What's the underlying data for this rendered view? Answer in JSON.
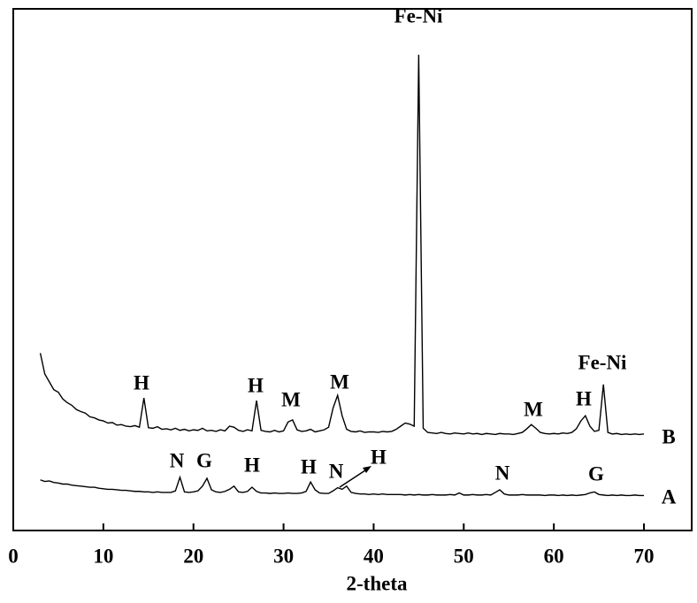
{
  "chart_data": {
    "type": "line",
    "x_label": "2-theta",
    "x": [
      3,
      3.5,
      4,
      4.5,
      5,
      5.5,
      6,
      6.5,
      7,
      7.5,
      8,
      8.5,
      9,
      9.5,
      10,
      10.5,
      11,
      11.5,
      12,
      12.5,
      13,
      13.5,
      14,
      14.5,
      15,
      15.5,
      16,
      16.5,
      17,
      17.5,
      18,
      18.5,
      19,
      19.5,
      20,
      20.5,
      21,
      21.5,
      22,
      22.5,
      23,
      23.5,
      24,
      24.5,
      25,
      25.5,
      26,
      26.5,
      27,
      27.5,
      28,
      28.5,
      29,
      29.5,
      30,
      30.5,
      31,
      31.5,
      32,
      32.5,
      33,
      33.5,
      34,
      34.5,
      35,
      35.5,
      36,
      36.5,
      37,
      37.5,
      38,
      38.5,
      39,
      39.5,
      40,
      40.5,
      41,
      41.5,
      42,
      42.5,
      43,
      43.5,
      44,
      44.5,
      45,
      45.5,
      46,
      46.5,
      47,
      47.5,
      48,
      48.5,
      49,
      49.5,
      50,
      50.5,
      51,
      51.5,
      52,
      52.5,
      53,
      53.5,
      54,
      54.5,
      55,
      55.5,
      56,
      56.5,
      57,
      57.5,
      58,
      58.5,
      59,
      59.5,
      60,
      60.5,
      61,
      61.5,
      62,
      62.5,
      63,
      63.5,
      64,
      64.5,
      65,
      65.5,
      66,
      66.5,
      67,
      67.5,
      68,
      68.5,
      69,
      69.5,
      70
    ],
    "series": [
      {
        "name": "B",
        "color": "#000000",
        "values": [
          34,
          30,
          28.5,
          27,
          26.5,
          25.2,
          24.5,
          24,
          23.2,
          22.8,
          22.5,
          21.8,
          21.6,
          21.2,
          21,
          20.6,
          20.7,
          20.2,
          20.3,
          20,
          19.9,
          20.1,
          19.8,
          25.4,
          19.7,
          19.6,
          19.9,
          19.4,
          19.5,
          19.3,
          19.6,
          19.2,
          19.4,
          19.1,
          19.3,
          19.2,
          19.6,
          19.1,
          19.2,
          19,
          19.3,
          19.1,
          20,
          19.8,
          19.2,
          19,
          19.3,
          19.1,
          24.9,
          19.2,
          19,
          18.9,
          19.2,
          18.9,
          19.1,
          20.8,
          21.2,
          19.3,
          19,
          19.1,
          19.4,
          18.9,
          19.1,
          19.3,
          19.8,
          23.5,
          25.9,
          22,
          19.4,
          19,
          18.9,
          19.1,
          18.8,
          18.9,
          18.9,
          18.8,
          19,
          18.9,
          19,
          19.4,
          20,
          20.6,
          20.4,
          20,
          91.2,
          19.6,
          18.8,
          18.7,
          18.6,
          18.8,
          18.6,
          18.5,
          18.7,
          18.6,
          18.5,
          18.7,
          18.5,
          18.6,
          18.4,
          18.6,
          18.5,
          18.4,
          18.6,
          18.5,
          18.5,
          18.4,
          18.6,
          18.8,
          19.5,
          20.3,
          19.6,
          18.8,
          18.6,
          18.5,
          18.6,
          18.5,
          18.7,
          18.6,
          18.8,
          19.5,
          21,
          22,
          20,
          19,
          19.2,
          28,
          18.8,
          18.5,
          18.6,
          18.4,
          18.5,
          18.4,
          18.5,
          18.4,
          18.5
        ]
      },
      {
        "name": "A",
        "color": "#000000",
        "values": [
          9.7,
          9.4,
          9.5,
          9.2,
          9.1,
          8.9,
          8.9,
          8.7,
          8.6,
          8.5,
          8.4,
          8.3,
          8.3,
          8.1,
          8,
          7.9,
          7.9,
          7.8,
          7.7,
          7.7,
          7.6,
          7.5,
          7.5,
          7.4,
          7.4,
          7.3,
          7.4,
          7.3,
          7.3,
          7.3,
          7.6,
          10.2,
          7.4,
          7.3,
          7.4,
          7.6,
          8.5,
          10,
          7.8,
          7.4,
          7.3,
          7.5,
          7.9,
          8.5,
          7.4,
          7.3,
          7.5,
          8.3,
          7.5,
          7.2,
          7.2,
          7.1,
          7.2,
          7.1,
          7.1,
          7.2,
          7.1,
          7.1,
          7.2,
          7.5,
          9.3,
          7.8,
          7.2,
          7.1,
          7.1,
          7.6,
          8.2,
          7.9,
          8.5,
          7.3,
          7.1,
          7,
          7,
          6.9,
          7,
          6.9,
          7,
          6.9,
          6.9,
          6.9,
          6.9,
          6.8,
          6.9,
          6.8,
          6.9,
          6.8,
          6.8,
          6.9,
          6.8,
          6.8,
          6.8,
          6.9,
          6.8,
          7.2,
          6.8,
          6.8,
          6.9,
          6.8,
          6.8,
          6.9,
          6.8,
          7.3,
          7.8,
          7,
          6.8,
          6.8,
          6.8,
          6.9,
          6.8,
          6.8,
          6.8,
          6.8,
          6.7,
          6.8,
          6.8,
          6.7,
          6.8,
          6.7,
          6.8,
          6.7,
          6.8,
          6.9,
          7.2,
          7.4,
          6.9,
          6.8,
          6.7,
          6.8,
          6.7,
          6.8,
          6.7,
          6.7,
          6.8,
          6.7,
          6.7
        ]
      }
    ],
    "annotations": [
      "H",
      "H",
      "M",
      "M",
      "Fe-Ni",
      "M",
      "H",
      "Fe-Ni",
      "N",
      "G",
      "H",
      "H",
      "N",
      "H",
      "N",
      "G"
    ],
    "xlim": [
      0,
      75.3
    ],
    "xticks": [
      0,
      10,
      20,
      30,
      40,
      50,
      60,
      70
    ],
    "ylim": [
      0,
      100
    ]
  }
}
